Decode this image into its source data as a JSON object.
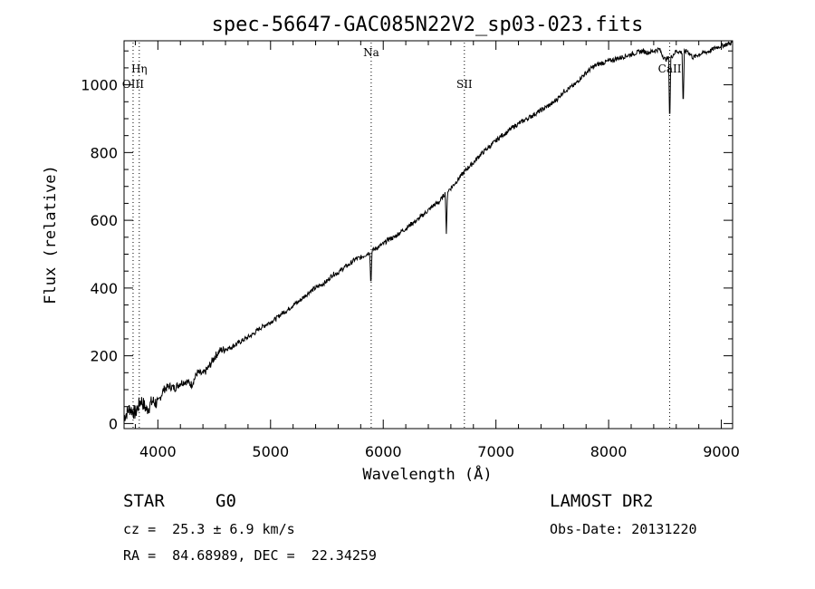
{
  "chart_data": {
    "type": "line",
    "title": "spec-56647-GAC085N22V2_sp03-023.fits",
    "xlabel": "Wavelength (Å)",
    "ylabel": "Flux (relative)",
    "xlim": [
      3700,
      9100
    ],
    "ylim": [
      -15,
      1130
    ],
    "xticks": [
      4000,
      5000,
      6000,
      7000,
      8000,
      9000
    ],
    "yticks": [
      0,
      200,
      400,
      600,
      800,
      1000
    ],
    "xtick_labels": [
      "4000",
      "5000",
      "6000",
      "7000",
      "8000",
      "9000"
    ],
    "ytick_labels": [
      "0",
      "200",
      "400",
      "600",
      "800",
      "1000"
    ],
    "grid": false,
    "legend": "none",
    "series": [
      {
        "x": [
          3700,
          3750,
          3800,
          3850,
          3900,
          3950,
          4000,
          4050,
          4100,
          4150,
          4200,
          4250,
          4300,
          4350,
          4400,
          4450,
          4500,
          4550,
          4600,
          4650,
          4700,
          4750,
          4800,
          4850,
          4900,
          4950,
          5000,
          5050,
          5100,
          5150,
          5200,
          5250,
          5300,
          5350,
          5400,
          5450,
          5500,
          5550,
          5600,
          5650,
          5700,
          5750,
          5800,
          5850,
          5900,
          5950,
          6000,
          6050,
          6100,
          6150,
          6200,
          6250,
          6300,
          6350,
          6400,
          6450,
          6500,
          6550,
          6600,
          6650,
          6700,
          6750,
          6800,
          6850,
          6900,
          6950,
          7000,
          7050,
          7100,
          7150,
          7200,
          7250,
          7300,
          7350,
          7400,
          7450,
          7500,
          7550,
          7600,
          7650,
          7700,
          7750,
          7800,
          7850,
          7900,
          7950,
          8000,
          8050,
          8100,
          8150,
          8200,
          8250,
          8300,
          8350,
          8400,
          8450,
          8500,
          8550,
          8600,
          8650,
          8700,
          8750,
          8800,
          8850,
          8900,
          8950,
          9000,
          9050,
          9100
        ],
        "y": [
          20,
          45,
          30,
          70,
          40,
          65,
          60,
          100,
          110,
          105,
          120,
          125,
          115,
          150,
          145,
          165,
          195,
          215,
          220,
          225,
          235,
          245,
          255,
          265,
          280,
          290,
          300,
          310,
          325,
          335,
          350,
          360,
          375,
          390,
          400,
          410,
          420,
          440,
          445,
          460,
          470,
          485,
          490,
          500,
          510,
          520,
          530,
          545,
          550,
          565,
          575,
          590,
          600,
          615,
          630,
          645,
          655,
          680,
          695,
          715,
          735,
          755,
          770,
          790,
          805,
          820,
          835,
          850,
          860,
          875,
          885,
          895,
          905,
          915,
          925,
          935,
          945,
          960,
          980,
          990,
          1000,
          1020,
          1035,
          1050,
          1060,
          1065,
          1070,
          1075,
          1080,
          1085,
          1090,
          1095,
          1100,
          1095,
          1100,
          1105,
          1075,
          1080,
          1100,
          1095,
          1100,
          1080,
          1090,
          1095,
          1100,
          1110,
          1115,
          1120,
          1125
        ]
      }
    ],
    "absorption_dips": [
      {
        "x": 5890,
        "y": 400
      },
      {
        "x": 6560,
        "y": 560
      },
      {
        "x": 8542,
        "y": 875
      },
      {
        "x": 8662,
        "y": 925
      }
    ],
    "line_markers": [
      {
        "label": "Hη",
        "x": 3835,
        "row": "upper"
      },
      {
        "label": "OIII",
        "x": 3780,
        "row": "lower"
      },
      {
        "label": "Na",
        "x": 5893,
        "row": "top"
      },
      {
        "label": "SII",
        "x": 6720,
        "row": "lower"
      },
      {
        "label": "CaII",
        "x": 8542,
        "row": "upper"
      }
    ]
  },
  "info": {
    "object_class": "STAR",
    "subclass": "G0",
    "survey": "LAMOST DR2",
    "redshift": "cz =  25.3 ± 6.9 km/s",
    "obs_date": "Obs-Date: 20131220",
    "coords": "RA =  84.68989, DEC =  22.34259"
  }
}
